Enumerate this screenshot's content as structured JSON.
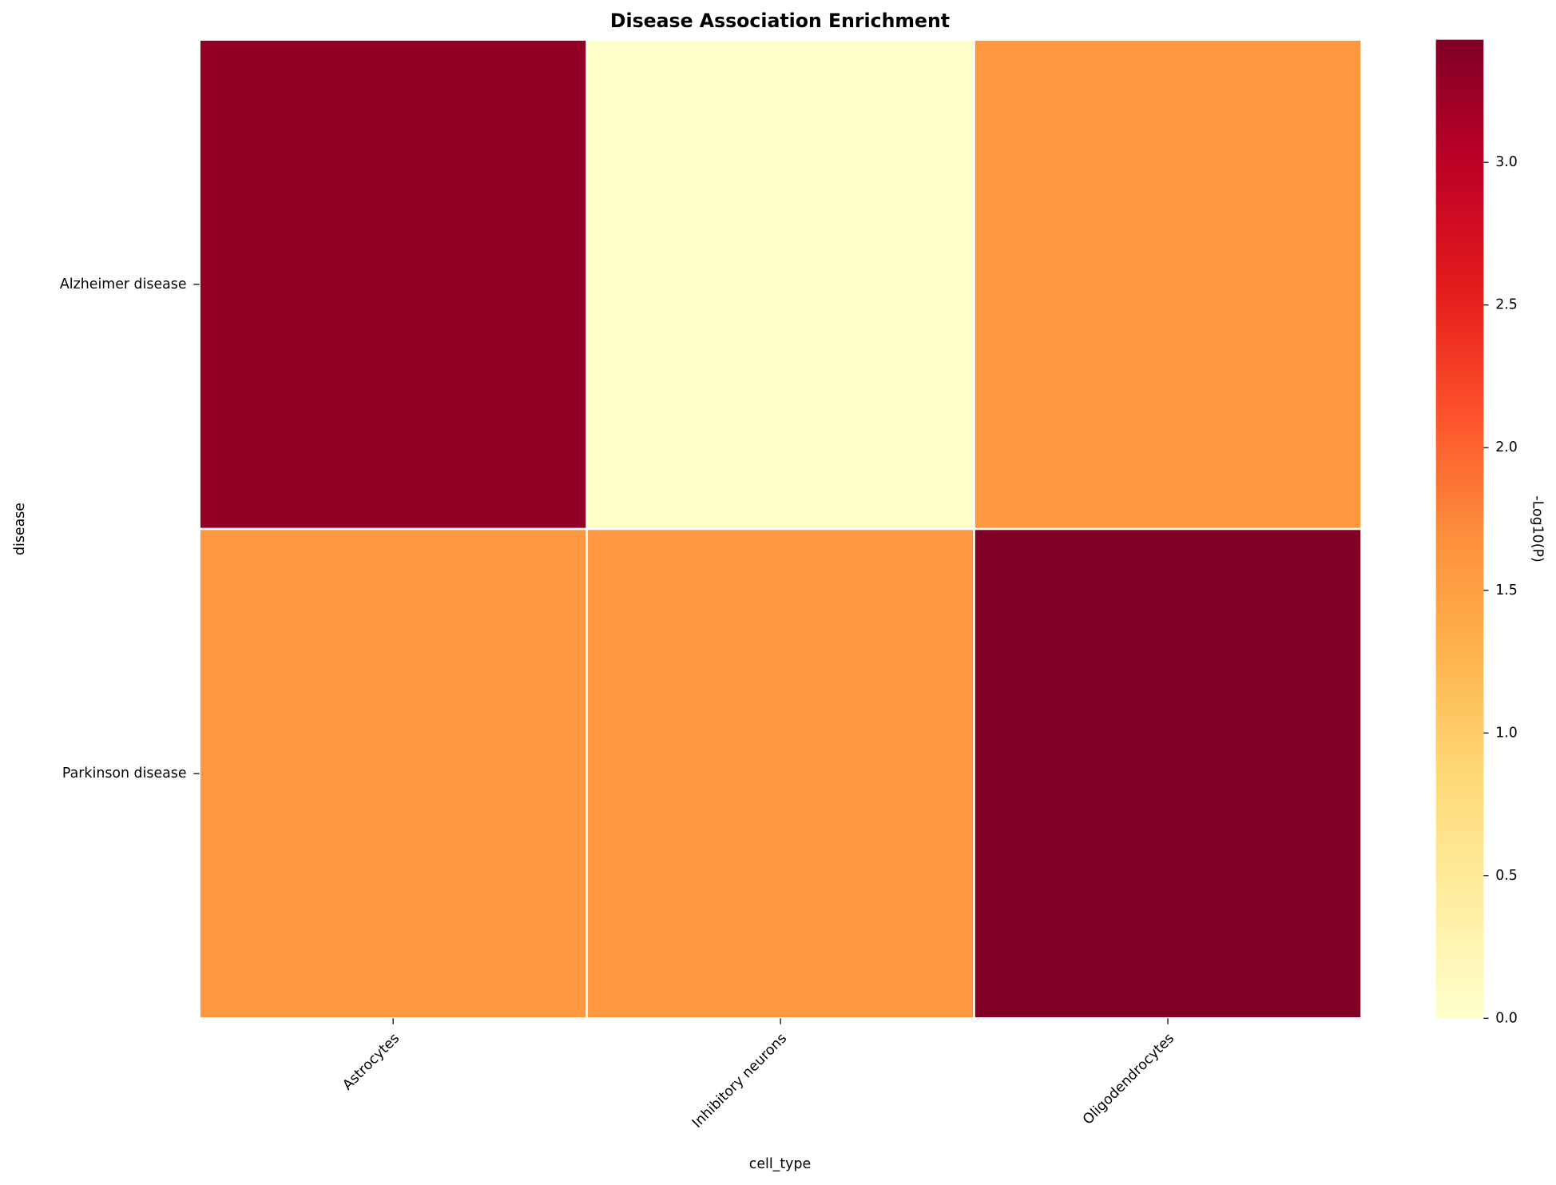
{
  "chart_data": {
    "type": "heatmap",
    "title": "Disease Association Enrichment",
    "x_label": "cell_type",
    "y_label": "disease",
    "categories": [
      "Astrocytes",
      "Inhibitory neurons",
      "Oligodendrocytes"
    ],
    "rows": [
      "Alzheimer disease",
      "Parkinson disease"
    ],
    "values": [
      [
        3.3,
        0,
        1.6
      ],
      [
        1.6,
        1.6,
        3.43
      ]
    ],
    "colormap": "YlOrRd",
    "colorbar_label": "-Log10(P)",
    "clim": [
      0,
      3.43
    ],
    "colorbar_ticks": [
      {
        "value": 0,
        "label": "0.0"
      },
      0.5,
      {
        "value": 1,
        "label": "1.0"
      },
      1.5,
      {
        "value": 2,
        "label": "2.0"
      },
      2.5,
      {
        "value": 3,
        "label": "3.0"
      }
    ]
  }
}
